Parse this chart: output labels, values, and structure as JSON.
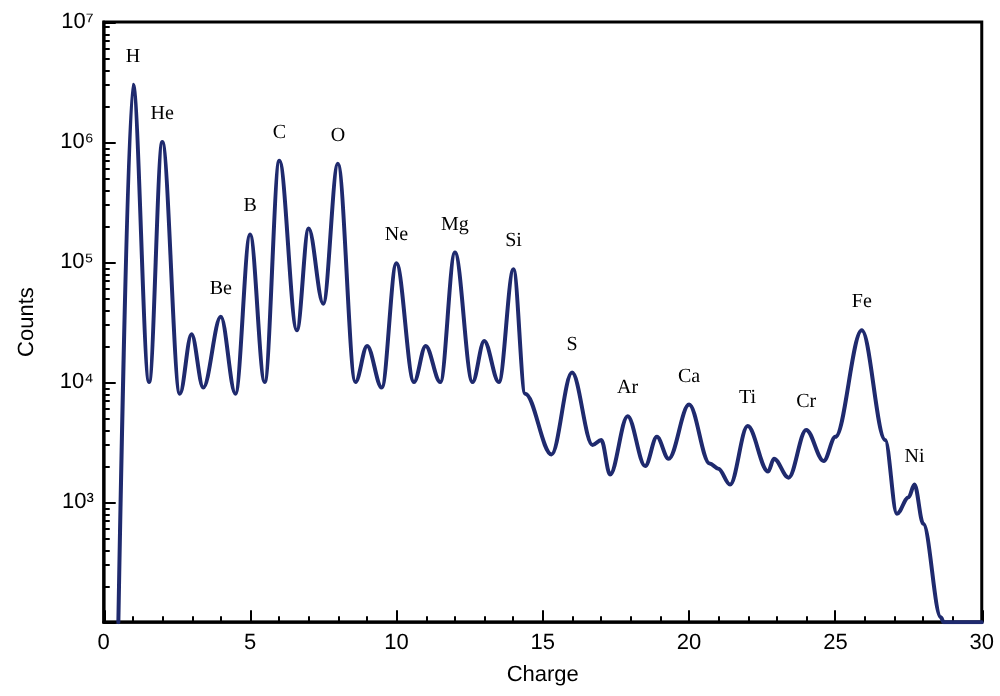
{
  "chart_data": {
    "type": "line",
    "xlabel": "Charge",
    "ylabel": "Counts",
    "log": "y",
    "xlim": [
      0,
      30
    ],
    "xticks": [
      0,
      5,
      10,
      15,
      20,
      25,
      30
    ],
    "ylim": [
      100,
      10000000
    ],
    "yticks": [
      {
        "value": 100,
        "label": null
      },
      {
        "value": 1000,
        "label": "10³"
      },
      {
        "value": 10000,
        "label": "10⁴"
      },
      {
        "value": 100000,
        "label": "10⁵"
      },
      {
        "value": 1000000,
        "label": "10⁶"
      },
      {
        "value": 10000000,
        "label": "10⁷"
      }
    ],
    "grid": false,
    "marker": "none",
    "line_style": "solid",
    "series": [
      {
        "color": "#1f2a6e",
        "x": [
          0.5,
          1,
          1.55,
          2,
          2.6,
          3,
          3.4,
          4,
          4.5,
          5,
          5.5,
          6,
          6.6,
          7,
          7.5,
          8,
          8.6,
          9,
          9.5,
          10,
          10.6,
          11,
          11.5,
          12,
          12.6,
          13,
          13.5,
          14,
          14.4,
          15.3,
          16,
          16.7,
          17,
          17.3,
          17.9,
          18.5,
          18.9,
          19.3,
          20,
          20.7,
          21,
          21.4,
          22,
          22.7,
          22.9,
          23.4,
          24,
          24.6,
          25,
          25.9,
          26.7,
          27.1,
          27.5,
          27.7,
          28,
          28.6,
          28.7,
          30
        ],
        "values": [
          100,
          3000000,
          10000,
          1000000,
          8000,
          25000,
          9000,
          35000,
          8000,
          170000,
          10000,
          700000,
          27000,
          190000,
          45000,
          660000,
          10000,
          20000,
          9000,
          98000,
          10000,
          20000,
          10000,
          120000,
          10000,
          22000,
          10000,
          87000,
          8000,
          2500,
          12000,
          3000,
          3300,
          1700,
          5200,
          2000,
          3500,
          2300,
          6500,
          2100,
          1900,
          1400,
          4300,
          1800,
          2300,
          1600,
          4000,
          2200,
          3500,
          27000,
          3300,
          800,
          1100,
          1400,
          660,
          110,
          100,
          100
        ]
      }
    ],
    "annotations": [
      {
        "text": "H",
        "x": 1,
        "y": 3000000
      },
      {
        "text": "He",
        "x": 2,
        "y": 1000000
      },
      {
        "text": "Be",
        "x": 4,
        "y": 35000
      },
      {
        "text": "B",
        "x": 5,
        "y": 170000
      },
      {
        "text": "C",
        "x": 6,
        "y": 700000
      },
      {
        "text": "O",
        "x": 8,
        "y": 660000
      },
      {
        "text": "Ne",
        "x": 10,
        "y": 98000
      },
      {
        "text": "Mg",
        "x": 12,
        "y": 120000
      },
      {
        "text": "Si",
        "x": 14,
        "y": 87000
      },
      {
        "text": "S",
        "x": 16,
        "y": 12000
      },
      {
        "text": "Ar",
        "x": 17.9,
        "y": 5200
      },
      {
        "text": "Ca",
        "x": 20,
        "y": 6500
      },
      {
        "text": "Ti",
        "x": 22,
        "y": 4300
      },
      {
        "text": "Cr",
        "x": 24,
        "y": 4000
      },
      {
        "text": "Fe",
        "x": 25.9,
        "y": 27000
      },
      {
        "text": "Ni",
        "x": 27.7,
        "y": 1400
      }
    ]
  }
}
